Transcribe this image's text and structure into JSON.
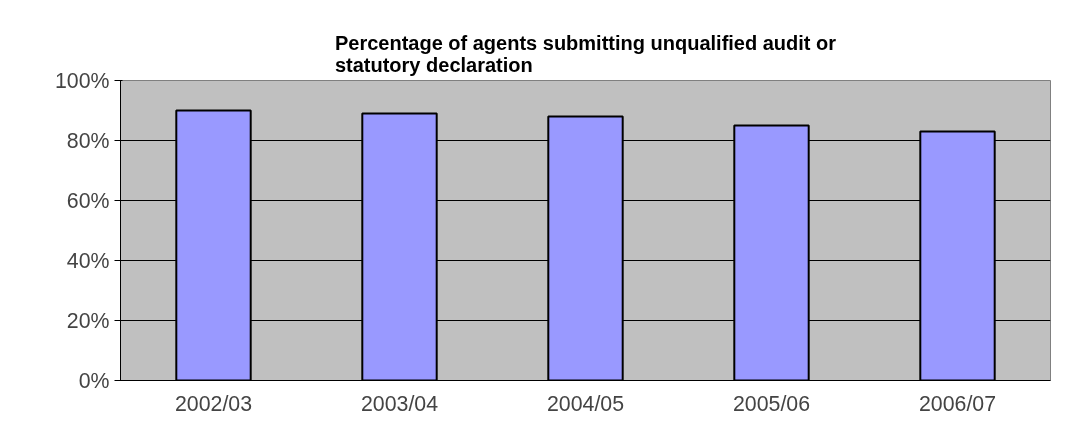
{
  "chart_data": {
    "type": "bar",
    "title": "Percentage of agents submitting unqualified audit or statutory declaration",
    "categories": [
      "2002/03",
      "2003/04",
      "2004/05",
      "2005/06",
      "2006/07"
    ],
    "values": [
      90,
      89,
      88,
      85,
      83
    ],
    "color": "#9999ff",
    "ylim": [
      0,
      100
    ],
    "yticks": [
      {
        "value": 0,
        "label": "0%"
      },
      {
        "value": 20,
        "label": "20%"
      },
      {
        "value": 40,
        "label": "40%"
      },
      {
        "value": 60,
        "label": "60%"
      },
      {
        "value": 80,
        "label": "80%"
      },
      {
        "value": 100,
        "label": "100%"
      }
    ],
    "grid": "y"
  }
}
